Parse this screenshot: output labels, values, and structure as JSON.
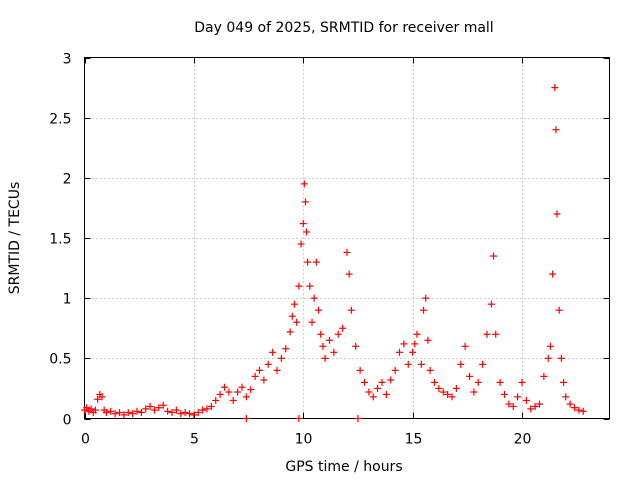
{
  "chart_data": {
    "type": "scatter",
    "title": "Day 049 of 2025, SRMTID for receiver mall",
    "xlabel": "GPS time / hours",
    "ylabel": "SRMTID / TECUs",
    "xlim": [
      0,
      24
    ],
    "ylim": [
      0,
      3
    ],
    "xticks": [
      0,
      5,
      10,
      15,
      20
    ],
    "yticks": [
      0,
      0.5,
      1,
      1.5,
      2,
      2.5,
      3
    ],
    "xtick_labels": [
      "0",
      "5",
      "10",
      "15",
      "20"
    ],
    "ytick_labels": [
      "0",
      "0.5",
      "1",
      "1.5",
      "2",
      "2.5",
      "3"
    ],
    "grid": true,
    "marker": "+",
    "marker_color": "#ff0000",
    "series": [
      {
        "name": "SRMTID",
        "points": [
          [
            0.0,
            0.07
          ],
          [
            0.1,
            0.09
          ],
          [
            0.2,
            0.06
          ],
          [
            0.3,
            0.08
          ],
          [
            0.4,
            0.05
          ],
          [
            0.5,
            0.07
          ],
          [
            0.6,
            0.16
          ],
          [
            0.7,
            0.2
          ],
          [
            0.8,
            0.18
          ],
          [
            0.9,
            0.07
          ],
          [
            1.0,
            0.05
          ],
          [
            1.2,
            0.06
          ],
          [
            1.4,
            0.04
          ],
          [
            1.6,
            0.05
          ],
          [
            1.8,
            0.03
          ],
          [
            2.0,
            0.05
          ],
          [
            2.2,
            0.04
          ],
          [
            2.4,
            0.06
          ],
          [
            2.6,
            0.05
          ],
          [
            2.8,
            0.08
          ],
          [
            3.0,
            0.1
          ],
          [
            3.2,
            0.07
          ],
          [
            3.4,
            0.09
          ],
          [
            3.6,
            0.11
          ],
          [
            3.8,
            0.06
          ],
          [
            4.0,
            0.05
          ],
          [
            4.2,
            0.07
          ],
          [
            4.4,
            0.04
          ],
          [
            4.6,
            0.05
          ],
          [
            4.8,
            0.04
          ],
          [
            5.0,
            0.03
          ],
          [
            5.2,
            0.05
          ],
          [
            5.4,
            0.07
          ],
          [
            5.6,
            0.08
          ],
          [
            5.8,
            0.1
          ],
          [
            6.0,
            0.15
          ],
          [
            6.2,
            0.2
          ],
          [
            6.4,
            0.26
          ],
          [
            6.6,
            0.22
          ],
          [
            6.8,
            0.15
          ],
          [
            7.0,
            0.22
          ],
          [
            7.2,
            0.26
          ],
          [
            7.4,
            0.18
          ],
          [
            7.6,
            0.24
          ],
          [
            7.8,
            0.35
          ],
          [
            8.0,
            0.4
          ],
          [
            8.2,
            0.32
          ],
          [
            8.4,
            0.45
          ],
          [
            8.6,
            0.55
          ],
          [
            8.8,
            0.4
          ],
          [
            9.0,
            0.5
          ],
          [
            9.2,
            0.58
          ],
          [
            9.4,
            0.72
          ],
          [
            9.5,
            0.85
          ],
          [
            9.6,
            0.95
          ],
          [
            9.7,
            0.8
          ],
          [
            9.8,
            1.1
          ],
          [
            9.9,
            1.45
          ],
          [
            10.0,
            1.62
          ],
          [
            10.05,
            1.95
          ],
          [
            10.1,
            1.8
          ],
          [
            10.15,
            1.55
          ],
          [
            10.2,
            1.3
          ],
          [
            10.3,
            1.1
          ],
          [
            10.4,
            0.8
          ],
          [
            10.5,
            1.0
          ],
          [
            10.6,
            1.3
          ],
          [
            10.7,
            0.9
          ],
          [
            10.8,
            0.7
          ],
          [
            10.9,
            0.6
          ],
          [
            11.0,
            0.5
          ],
          [
            11.2,
            0.65
          ],
          [
            11.4,
            0.55
          ],
          [
            11.6,
            0.7
          ],
          [
            11.8,
            0.75
          ],
          [
            12.0,
            1.38
          ],
          [
            12.1,
            1.2
          ],
          [
            12.2,
            0.9
          ],
          [
            12.4,
            0.6
          ],
          [
            12.6,
            0.4
          ],
          [
            12.8,
            0.3
          ],
          [
            13.0,
            0.22
          ],
          [
            13.2,
            0.18
          ],
          [
            13.4,
            0.25
          ],
          [
            13.6,
            0.3
          ],
          [
            13.8,
            0.2
          ],
          [
            14.0,
            0.32
          ],
          [
            14.2,
            0.4
          ],
          [
            14.4,
            0.55
          ],
          [
            14.6,
            0.62
          ],
          [
            14.8,
            0.45
          ],
          [
            15.0,
            0.55
          ],
          [
            15.1,
            0.62
          ],
          [
            15.2,
            0.7
          ],
          [
            15.4,
            0.45
          ],
          [
            15.5,
            0.9
          ],
          [
            15.6,
            1.0
          ],
          [
            15.7,
            0.65
          ],
          [
            15.8,
            0.4
          ],
          [
            16.0,
            0.3
          ],
          [
            16.2,
            0.25
          ],
          [
            16.4,
            0.22
          ],
          [
            16.6,
            0.2
          ],
          [
            16.8,
            0.18
          ],
          [
            17.0,
            0.25
          ],
          [
            17.2,
            0.45
          ],
          [
            17.4,
            0.6
          ],
          [
            17.6,
            0.35
          ],
          [
            17.8,
            0.22
          ],
          [
            18.0,
            0.3
          ],
          [
            18.2,
            0.45
          ],
          [
            18.4,
            0.7
          ],
          [
            18.6,
            0.95
          ],
          [
            18.7,
            1.35
          ],
          [
            18.8,
            0.7
          ],
          [
            19.0,
            0.3
          ],
          [
            19.2,
            0.2
          ],
          [
            19.4,
            0.12
          ],
          [
            19.6,
            0.1
          ],
          [
            19.8,
            0.18
          ],
          [
            20.0,
            0.3
          ],
          [
            20.2,
            0.15
          ],
          [
            20.4,
            0.08
          ],
          [
            20.6,
            0.1
          ],
          [
            20.8,
            0.12
          ],
          [
            21.0,
            0.35
          ],
          [
            21.2,
            0.5
          ],
          [
            21.3,
            0.6
          ],
          [
            21.4,
            1.2
          ],
          [
            21.5,
            2.75
          ],
          [
            21.55,
            2.4
          ],
          [
            21.6,
            1.7
          ],
          [
            21.7,
            0.9
          ],
          [
            21.8,
            0.5
          ],
          [
            21.9,
            0.3
          ],
          [
            22.0,
            0.18
          ],
          [
            22.2,
            0.12
          ],
          [
            22.4,
            0.09
          ],
          [
            22.6,
            0.07
          ],
          [
            22.8,
            0.06
          ],
          [
            7.4,
            0.0
          ],
          [
            9.8,
            0.0
          ],
          [
            12.5,
            0.0
          ]
        ]
      }
    ]
  }
}
